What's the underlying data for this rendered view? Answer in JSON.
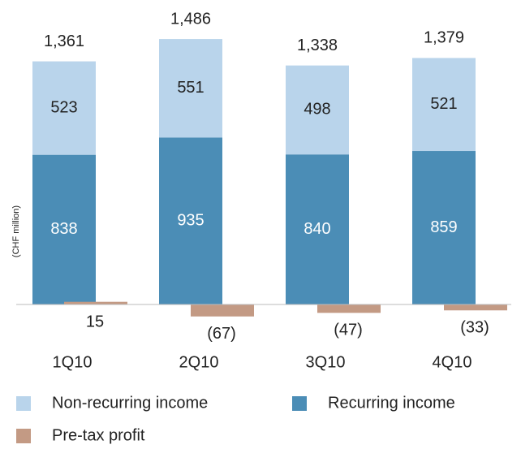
{
  "chart_data": {
    "type": "bar",
    "stacked": true,
    "y_label": "(CHF million)",
    "categories": [
      "1Q10",
      "2Q10",
      "3Q10",
      "4Q10"
    ],
    "series": [
      {
        "name": "Recurring income",
        "color": "#4b8db6",
        "values": [
          838,
          935,
          840,
          859
        ]
      },
      {
        "name": "Non-recurring income",
        "color": "#b9d4eb",
        "values": [
          523,
          551,
          498,
          521
        ]
      },
      {
        "name": "Pre-tax profit",
        "color": "#c39a84",
        "values": [
          15,
          -67,
          -47,
          -33
        ],
        "value_labels": [
          "15",
          "(67)",
          "(47)",
          "(33)"
        ]
      }
    ],
    "total_labels": [
      "1,361",
      "1,486",
      "1,338",
      "1,379"
    ]
  }
}
